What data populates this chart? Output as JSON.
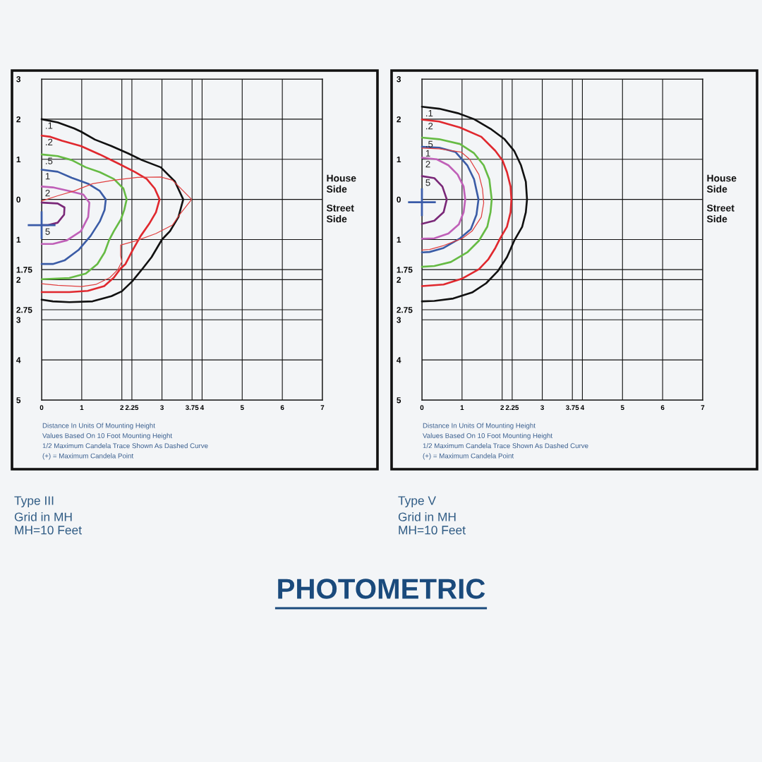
{
  "chart_data": [
    {
      "type": "line",
      "title": "Type III",
      "subtitle": "Grid in MH\nMH=10 Feet",
      "xlim": [
        0,
        7
      ],
      "xticks": [
        0,
        1,
        2,
        2.25,
        3,
        3.75,
        4,
        5,
        6,
        7
      ],
      "ylim": [
        -5,
        3
      ],
      "yticks": [
        3,
        2,
        1,
        0,
        {
          "value": -1,
          "label": "1"
        },
        {
          "value": -1.75,
          "label": "1.75"
        },
        {
          "value": -2,
          "label": "2"
        },
        {
          "value": -2.75,
          "label": "2.75"
        },
        {
          "value": -3,
          "label": "3"
        },
        {
          "value": -4,
          "label": "4"
        },
        {
          "value": -5,
          "label": "5"
        }
      ],
      "grid": true,
      "series": [
        {
          "name": ".1",
          "color": "#111111",
          "x": [
            0,
            0.4,
            0.81,
            0.98,
            1.33,
            1.74,
            2.15,
            2.5,
            2.97,
            3.32,
            3.53,
            3.41,
            3.2,
            3.0,
            2.74,
            2.52,
            2.26,
            2.0,
            1.74,
            1.27,
            0.69,
            0.28,
            0
          ],
          "values": [
            2.0,
            1.92,
            1.77,
            1.69,
            1.49,
            1.33,
            1.15,
            0.98,
            0.8,
            0.45,
            0,
            -0.44,
            -0.79,
            -1.0,
            -1.44,
            -1.72,
            -2.04,
            -2.29,
            -2.41,
            -2.54,
            -2.56,
            -2.54,
            -2.5
          ]
        },
        {
          "name": ".2",
          "color": "#e0282e",
          "x": [
            0,
            0.22,
            0.51,
            0.98,
            1.45,
            1.92,
            2.33,
            2.62,
            2.82,
            2.94,
            2.85,
            2.68,
            2.47,
            2.27,
            2.09,
            1.97,
            1.8,
            1.56,
            1.15,
            0.69,
            0
          ],
          "values": [
            1.59,
            1.56,
            1.46,
            1.33,
            1.12,
            0.89,
            0.68,
            0.51,
            0.27,
            0,
            -0.32,
            -0.61,
            -0.91,
            -1.26,
            -1.61,
            -1.72,
            -1.95,
            -2.16,
            -2.28,
            -2.31,
            -2.31
          ]
        },
        {
          "name": ".5",
          "color": "#66bb44",
          "x": [
            0,
            0.4,
            0.75,
            1.1,
            1.45,
            1.8,
            2.04,
            2.12,
            2.06,
            1.98,
            1.8,
            1.68,
            1.57,
            1.39,
            1.1,
            0.69,
            0
          ],
          "values": [
            1.12,
            1.08,
            0.98,
            0.8,
            0.68,
            0.51,
            0.27,
            0,
            -0.26,
            -0.49,
            -0.79,
            -1.02,
            -1.32,
            -1.61,
            -1.85,
            -1.96,
            -1.99
          ]
        },
        {
          "name": "1",
          "color": "#3b5ca6",
          "x": [
            0,
            0.4,
            0.75,
            1.16,
            1.45,
            1.6,
            1.57,
            1.45,
            1.22,
            0.92,
            0.57,
            0.28,
            0
          ],
          "values": [
            0.74,
            0.69,
            0.54,
            0.39,
            0.21,
            0,
            -0.26,
            -0.55,
            -0.91,
            -1.26,
            -1.52,
            -1.61,
            -1.61
          ]
        },
        {
          "name": "2",
          "color": "#c060b8",
          "x": [
            0,
            0.28,
            0.69,
            1.04,
            1.19,
            1.16,
            0.98,
            0.63,
            0.28,
            0
          ],
          "values": [
            0.32,
            0.3,
            0.21,
            0.12,
            -0.08,
            -0.44,
            -0.79,
            -1.02,
            -1.11,
            -1.11
          ]
        },
        {
          "name": "5",
          "color": "#7a2878",
          "x": [
            0,
            0.16,
            0.4,
            0.56,
            0.57,
            0.4,
            0
          ],
          "values": [
            -0.64,
            -0.64,
            -0.58,
            -0.38,
            -0.2,
            -0.1,
            -0.08
          ]
        },
        {
          "color": "#e04040",
          "x": [
            0,
            0.4,
            0.81,
            1.27,
            1.8,
            2.39,
            2.97,
            3.26,
            3.74,
            3.44,
            3.26,
            2.85,
            2.39,
            1.97,
            1.97,
            2.0,
            1.9,
            1.7,
            1.35,
            1.0,
            0.4,
            0
          ],
          "values": [
            -0.04,
            0.09,
            0.21,
            0.39,
            0.48,
            0.55,
            0.56,
            0.48,
            0,
            -0.38,
            -0.64,
            -0.85,
            -1.02,
            -1.14,
            -1.4,
            -1.55,
            -1.75,
            -1.95,
            -2.12,
            -2.17,
            -2.14,
            -2.1
          ]
        },
        {
          "type": "scatter",
          "marker": "cross",
          "color": "#3a5ba8",
          "x": [
            0
          ],
          "values": [
            -0.64
          ]
        }
      ],
      "annotations": [
        "House\nSide",
        "Street\nSide",
        "Distance In Units Of Mounting Height",
        "Values Based On 10 Foot Mounting Height",
        "1/2 Maximum Candela Trace Shown As Dashed Curve",
        "(+) = Maximum Candela Point"
      ]
    },
    {
      "type": "line",
      "title": "Type V",
      "subtitle": "Grid in MH\nMH=10 Feet",
      "xlim": [
        0,
        7
      ],
      "xticks": [
        0,
        1,
        2,
        2.25,
        3,
        3.75,
        4,
        5,
        6,
        7
      ],
      "ylim": [
        -5,
        3
      ],
      "yticks": [
        3,
        2,
        1,
        0,
        {
          "value": -1,
          "label": "1"
        },
        {
          "value": -1.75,
          "label": "1.75"
        },
        {
          "value": -2,
          "label": "2"
        },
        {
          "value": -2.75,
          "label": "2.75"
        },
        {
          "value": -3,
          "label": "3"
        },
        {
          "value": -4,
          "label": "4"
        },
        {
          "value": -5,
          "label": "5"
        }
      ],
      "grid": true,
      "series": [
        {
          "name": ".1",
          "color": "#111111",
          "x": [
            0,
            0.43,
            0.89,
            1.3,
            1.71,
            2.06,
            2.3,
            2.47,
            2.59,
            2.62,
            2.59,
            2.5,
            2.3,
            2.12,
            1.89,
            1.6,
            1.25,
            0.78,
            0.31,
            0
          ],
          "values": [
            2.31,
            2.26,
            2.15,
            2.0,
            1.76,
            1.5,
            1.21,
            0.85,
            0.44,
            0,
            -0.32,
            -0.68,
            -1.03,
            -1.44,
            -1.79,
            -2.09,
            -2.32,
            -2.47,
            -2.53,
            -2.54
          ]
        },
        {
          "name": ".2",
          "color": "#e0282e",
          "x": [
            0,
            0.43,
            0.95,
            1.48,
            1.83,
            2.01,
            2.12,
            2.21,
            2.23,
            2.21,
            2.12,
            1.95,
            1.83,
            1.65,
            1.42,
            1.01,
            0.54,
            0
          ],
          "values": [
            1.99,
            1.94,
            1.79,
            1.56,
            1.21,
            0.97,
            0.68,
            0.32,
            0,
            -0.32,
            -0.68,
            -0.97,
            -1.21,
            -1.5,
            -1.74,
            -1.97,
            -2.12,
            -2.16
          ]
        },
        {
          "name": ".5",
          "color": "#66bb44",
          "x": [
            0,
            0.43,
            0.95,
            1.3,
            1.54,
            1.68,
            1.74,
            1.71,
            1.63,
            1.42,
            1.13,
            0.72,
            0.31,
            0
          ],
          "values": [
            1.54,
            1.5,
            1.38,
            1.15,
            0.85,
            0.5,
            0,
            -0.32,
            -0.68,
            -1.03,
            -1.32,
            -1.56,
            -1.66,
            -1.68
          ]
        },
        {
          "name": "1",
          "color": "#3b5ca6",
          "x": [
            0,
            0.43,
            0.84,
            1.13,
            1.3,
            1.41,
            1.36,
            1.22,
            0.95,
            0.54,
            0.19,
            0
          ],
          "values": [
            1.31,
            1.29,
            1.18,
            0.85,
            0.5,
            0,
            -0.38,
            -0.74,
            -0.97,
            -1.21,
            -1.31,
            -1.32
          ]
        },
        {
          "name": "2",
          "color": "#c060b8",
          "x": [
            0,
            0.37,
            0.66,
            0.89,
            1.04,
            1.08,
            1.04,
            0.92,
            0.66,
            0.31,
            0
          ],
          "values": [
            1.04,
            1.0,
            0.85,
            0.62,
            0.32,
            0,
            -0.32,
            -0.62,
            -0.85,
            -0.97,
            -0.98
          ]
        },
        {
          "name": "5",
          "color": "#7a2878",
          "x": [
            0,
            0.31,
            0.51,
            0.62,
            0.54,
            0.31,
            0
          ],
          "values": [
            0.58,
            0.53,
            0.32,
            0,
            -0.32,
            -0.53,
            -0.61
          ]
        },
        {
          "color": "#e04040",
          "x": [
            0,
            0.43,
            0.98,
            1.19,
            1.42,
            1.51,
            1.54,
            1.48,
            1.25,
            1.01,
            0.54,
            0.19,
            0
          ],
          "values": [
            1.28,
            1.26,
            1.18,
            1.0,
            0.62,
            0.26,
            -0.09,
            -0.44,
            -0.79,
            -0.97,
            -1.15,
            -1.25,
            -1.26
          ]
        },
        {
          "type": "scatter",
          "marker": "cross",
          "color": "#3a5ba8",
          "x": [
            0
          ],
          "values": [
            -0.07
          ]
        }
      ],
      "annotations": [
        "House\nSide",
        "Street\nSide",
        "Distance In Units Of Mounting Height",
        "Values Based On 10 Foot Mounting Height",
        "1/2 Maximum Candela Trace Shown As Dashed Curve",
        "(+) = Maximum Candela Point"
      ]
    },
    {
      "type": "other",
      "title": "PHOTOMETRIC"
    }
  ]
}
